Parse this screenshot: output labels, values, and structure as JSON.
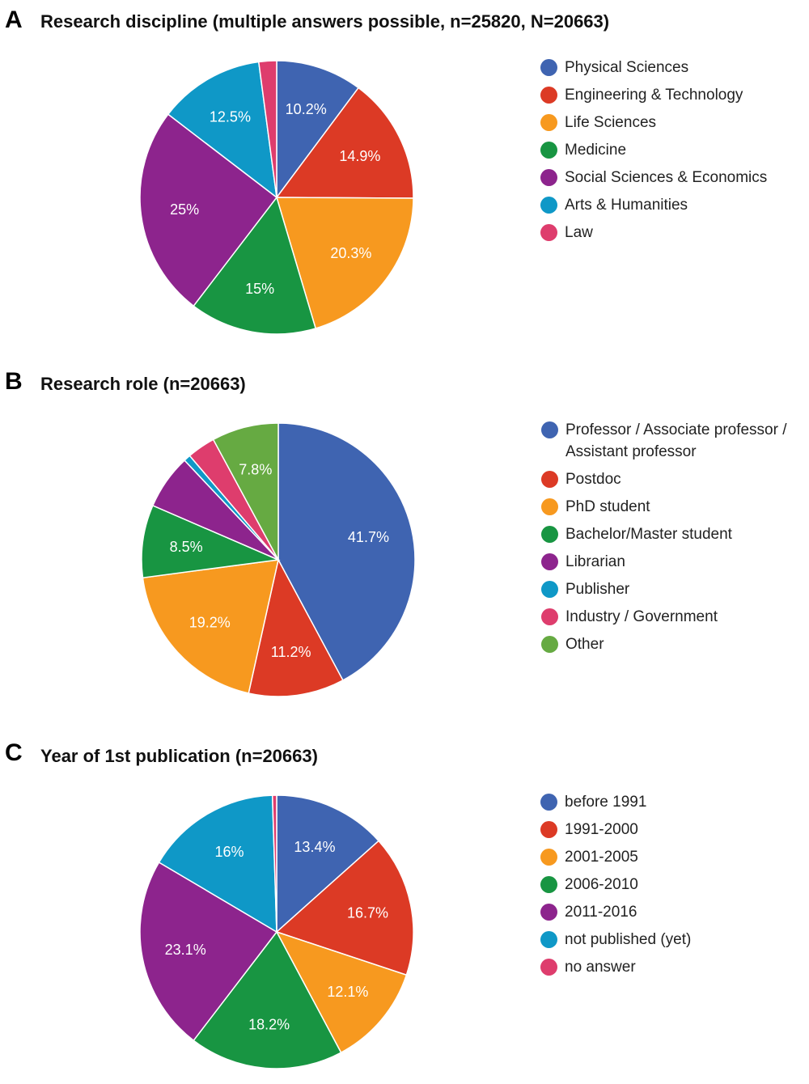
{
  "chart_data": [
    {
      "type": "pie",
      "panel": "A",
      "title": "Research discipline (multiple answers possible, n=25820, N=20663)",
      "legend_position": "right",
      "slices": [
        {
          "name": "Physical Sciences",
          "value": 10.2,
          "label": "10.2%",
          "color": "#3f64b1"
        },
        {
          "name": "Engineering & Technology",
          "value": 14.9,
          "label": "14.9%",
          "color": "#dc3a25"
        },
        {
          "name": "Life Sciences",
          "value": 20.3,
          "label": "20.3%",
          "color": "#f7991f"
        },
        {
          "name": "Medicine",
          "value": 15,
          "label": "15%",
          "color": "#189542"
        },
        {
          "name": "Social Sciences & Economics",
          "value": 25,
          "label": "25%",
          "color": "#8d248d"
        },
        {
          "name": "Arts & Humanities",
          "value": 12.5,
          "label": "12.5%",
          "color": "#0f98c7"
        },
        {
          "name": "Law",
          "value": 2.1,
          "label": "",
          "color": "#de3d6d"
        }
      ]
    },
    {
      "type": "pie",
      "panel": "B",
      "title": "Research role (n=20663)",
      "legend_position": "right",
      "slices": [
        {
          "name": "Professor / Associate professor / Assistant professor",
          "value": 41.7,
          "label": "41.7%",
          "color": "#3f64b1"
        },
        {
          "name": "Postdoc",
          "value": 11.2,
          "label": "11.2%",
          "color": "#dc3a25"
        },
        {
          "name": "PhD student",
          "value": 19.2,
          "label": "19.2%",
          "color": "#f7991f"
        },
        {
          "name": "Bachelor/Master student",
          "value": 8.5,
          "label": "8.5%",
          "color": "#189542"
        },
        {
          "name": "Librarian",
          "value": 6.4,
          "label": "",
          "color": "#8d248d"
        },
        {
          "name": "Publisher",
          "value": 0.8,
          "label": "",
          "color": "#0f98c7"
        },
        {
          "name": "Industry / Government",
          "value": 3.3,
          "label": "",
          "color": "#de3d6d"
        },
        {
          "name": "Other",
          "value": 7.8,
          "label": "7.8%",
          "color": "#66aa42"
        }
      ]
    },
    {
      "type": "pie",
      "panel": "C",
      "title": "Year of 1st publication (n=20663)",
      "legend_position": "right",
      "slices": [
        {
          "name": "before 1991",
          "value": 13.4,
          "label": "13.4%",
          "color": "#3f64b1"
        },
        {
          "name": "1991-2000",
          "value": 16.7,
          "label": "16.7%",
          "color": "#dc3a25"
        },
        {
          "name": "2001-2005",
          "value": 12.1,
          "label": "12.1%",
          "color": "#f7991f"
        },
        {
          "name": "2006-2010",
          "value": 18.2,
          "label": "18.2%",
          "color": "#189542"
        },
        {
          "name": "2011-2016",
          "value": 23.1,
          "label": "23.1%",
          "color": "#8d248d"
        },
        {
          "name": "not published (yet)",
          "value": 16,
          "label": "16%",
          "color": "#0f98c7"
        },
        {
          "name": "no answer",
          "value": 0.5,
          "label": "",
          "color": "#de3d6d"
        }
      ]
    }
  ]
}
